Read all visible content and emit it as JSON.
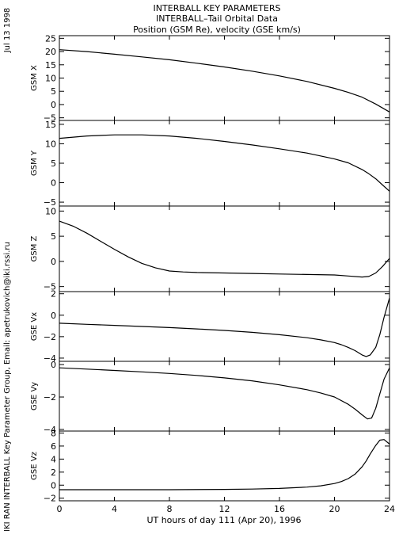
{
  "header": {
    "line1": "INTERBALL KEY PARAMETERS",
    "line2": "INTERBALL–Tail Orbital Data",
    "line3": "Position (GSM Re), velocity (GSE km/s)"
  },
  "side": {
    "date": "Jul 13 1998",
    "credit": "IKI RAN INTERBALL Key Parameter Group, Email: apetrukovich@iki.rssi.ru"
  },
  "colors": {
    "line": "#000000",
    "background": "#ffffff"
  },
  "chart_data": {
    "type": "line",
    "x_axis": {
      "label": "UT hours of day 111 (Apr 20), 1996",
      "range": [
        0,
        24
      ],
      "ticks": [
        0,
        4,
        8,
        12,
        16,
        20,
        24
      ],
      "tick_labels": [
        "0",
        "4",
        "8",
        "12",
        "16",
        "20",
        "24"
      ]
    },
    "panels": [
      {
        "ylabel": "GSM X",
        "ylim": [
          -6,
          26
        ],
        "yticks": [
          -5,
          0,
          5,
          10,
          15,
          20,
          25
        ],
        "ytick_labels": [
          "−5",
          "0",
          "5",
          "10",
          "15",
          "20",
          "25"
        ],
        "x": [
          0,
          2,
          4,
          6,
          8,
          10,
          12,
          14,
          16,
          18,
          20,
          21,
          22,
          23,
          24
        ],
        "y": [
          20.7,
          20.0,
          19.0,
          18.0,
          16.9,
          15.6,
          14.2,
          12.6,
          10.8,
          8.7,
          6.1,
          4.6,
          2.8,
          0.2,
          -2.8
        ]
      },
      {
        "ylabel": "GSM Y",
        "ylim": [
          -6,
          16
        ],
        "yticks": [
          -5,
          0,
          5,
          10,
          15
        ],
        "ytick_labels": [
          "−5",
          "0",
          "5",
          "10",
          "15"
        ],
        "x": [
          0,
          2,
          4,
          6,
          8,
          10,
          12,
          14,
          16,
          18,
          20,
          21,
          22,
          22.5,
          23,
          23.5,
          24
        ],
        "y": [
          11.4,
          12.0,
          12.3,
          12.3,
          12.0,
          11.4,
          10.6,
          9.7,
          8.7,
          7.6,
          6.1,
          5.1,
          3.4,
          2.3,
          1.0,
          -0.6,
          -2.2
        ]
      },
      {
        "ylabel": "GSM Z",
        "ylim": [
          -6,
          11
        ],
        "yticks": [
          -5,
          0,
          5,
          10
        ],
        "ytick_labels": [
          "−5",
          "0",
          "5",
          "10"
        ],
        "x": [
          0,
          1,
          2,
          3,
          4,
          5,
          6,
          7,
          8,
          9,
          10,
          12,
          14,
          16,
          18,
          20,
          21,
          22,
          22.5,
          23,
          23.5,
          24
        ],
        "y": [
          8.0,
          7.0,
          5.6,
          4.0,
          2.4,
          0.9,
          -0.4,
          -1.3,
          -1.9,
          -2.1,
          -2.2,
          -2.3,
          -2.4,
          -2.5,
          -2.6,
          -2.7,
          -2.9,
          -3.1,
          -3.0,
          -2.3,
          -1.0,
          0.6
        ]
      },
      {
        "ylabel": "GSE Vx",
        "ylim": [
          -4.3,
          2.2
        ],
        "yticks": [
          -4,
          -2,
          0,
          2
        ],
        "ytick_labels": [
          "−4",
          "−2",
          "0",
          "2"
        ],
        "x": [
          0,
          2,
          4,
          6,
          8,
          10,
          12,
          14,
          16,
          18,
          19,
          20,
          20.5,
          21,
          21.5,
          22,
          22.3,
          22.6,
          23,
          23.3,
          23.6,
          24
        ],
        "y": [
          -0.75,
          -0.85,
          -0.95,
          -1.05,
          -1.15,
          -1.28,
          -1.42,
          -1.6,
          -1.82,
          -2.1,
          -2.3,
          -2.55,
          -2.75,
          -3.0,
          -3.3,
          -3.7,
          -3.85,
          -3.7,
          -3.0,
          -1.8,
          -0.2,
          1.6
        ]
      },
      {
        "ylabel": "GSE Vy",
        "ylim": [
          -4.1,
          0.2
        ],
        "yticks": [
          -4,
          -2,
          0
        ],
        "ytick_labels": [
          "−4",
          "−2",
          "0"
        ],
        "x": [
          0,
          2,
          4,
          6,
          8,
          10,
          12,
          14,
          16,
          18,
          19,
          20,
          21,
          21.5,
          22,
          22.4,
          22.7,
          23,
          23.3,
          23.6,
          24
        ],
        "y": [
          -0.2,
          -0.28,
          -0.36,
          -0.45,
          -0.55,
          -0.67,
          -0.82,
          -1.0,
          -1.25,
          -1.55,
          -1.75,
          -2.0,
          -2.45,
          -2.75,
          -3.1,
          -3.35,
          -3.3,
          -2.7,
          -1.8,
          -0.9,
          -0.2
        ]
      },
      {
        "ylabel": "GSE Vz",
        "ylim": [
          -2.4,
          8.3
        ],
        "yticks": [
          -2,
          0,
          2,
          4,
          6,
          8
        ],
        "ytick_labels": [
          "−2",
          "0",
          "2",
          "4",
          "6",
          "8"
        ],
        "x": [
          0,
          4,
          8,
          12,
          14,
          16,
          18,
          19,
          20,
          20.5,
          21,
          21.5,
          22,
          22.3,
          22.6,
          23,
          23.3,
          23.6,
          24
        ],
        "y": [
          -0.7,
          -0.7,
          -0.7,
          -0.65,
          -0.6,
          -0.5,
          -0.3,
          -0.1,
          0.25,
          0.55,
          1.0,
          1.7,
          2.8,
          3.7,
          4.8,
          6.1,
          6.9,
          7.0,
          6.3
        ]
      }
    ]
  }
}
